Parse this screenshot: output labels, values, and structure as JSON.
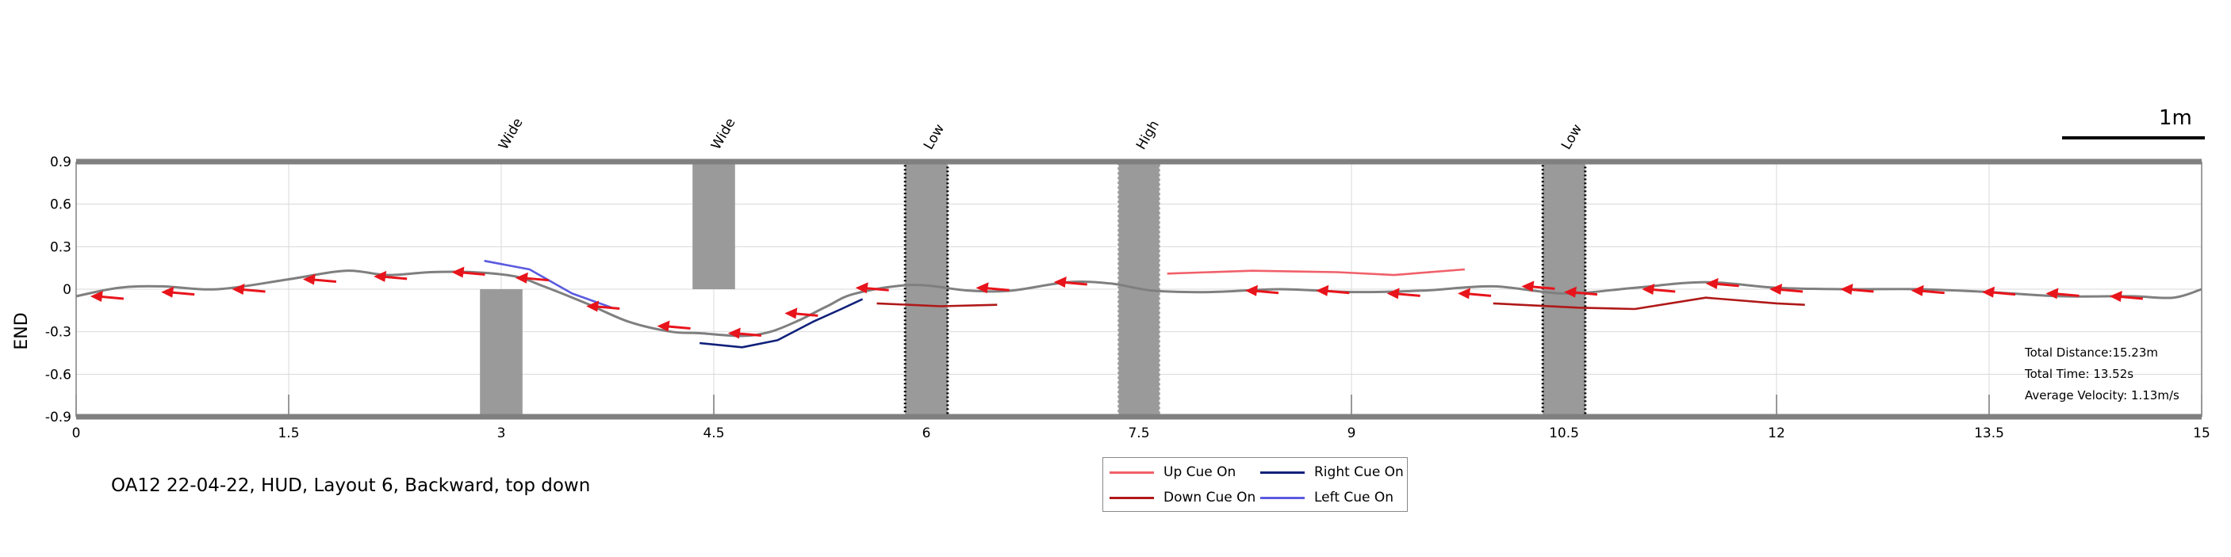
{
  "chart_data": {
    "type": "line",
    "ylabel": "END",
    "xlim": [
      0,
      15
    ],
    "ylim": [
      -0.9,
      0.9
    ],
    "xticks": [
      "0",
      "1.5",
      "3",
      "4.5",
      "6",
      "7.5",
      "9",
      "10.5",
      "12",
      "13.5",
      "15"
    ],
    "yticks": [
      "0.9",
      "0.6",
      "0.3",
      "0",
      "-0.3",
      "-0.6",
      "-0.9"
    ],
    "grid": true,
    "path": [
      [
        0,
        -0.05
      ],
      [
        0.3,
        0.01
      ],
      [
        0.6,
        0.02
      ],
      [
        1.0,
        0.0
      ],
      [
        1.5,
        0.07
      ],
      [
        1.9,
        0.13
      ],
      [
        2.2,
        0.1
      ],
      [
        2.5,
        0.12
      ],
      [
        2.8,
        0.12
      ],
      [
        3.1,
        0.09
      ],
      [
        3.3,
        0.02
      ],
      [
        3.6,
        -0.1
      ],
      [
        3.9,
        -0.23
      ],
      [
        4.2,
        -0.3
      ],
      [
        4.4,
        -0.31
      ],
      [
        4.7,
        -0.33
      ],
      [
        4.9,
        -0.3
      ],
      [
        5.1,
        -0.22
      ],
      [
        5.3,
        -0.12
      ],
      [
        5.5,
        -0.03
      ],
      [
        5.9,
        0.03
      ],
      [
        6.3,
        -0.01
      ],
      [
        6.6,
        -0.01
      ],
      [
        7.0,
        0.05
      ],
      [
        7.3,
        0.04
      ],
      [
        7.6,
        -0.01
      ],
      [
        8.0,
        -0.02
      ],
      [
        8.5,
        0.0
      ],
      [
        9.0,
        -0.02
      ],
      [
        9.5,
        -0.01
      ],
      [
        10.0,
        0.02
      ],
      [
        10.5,
        -0.03
      ],
      [
        11.0,
        0.01
      ],
      [
        11.5,
        0.05
      ],
      [
        12.0,
        0.01
      ],
      [
        12.5,
        0.0
      ],
      [
        13.0,
        0.0
      ],
      [
        13.5,
        -0.02
      ],
      [
        14.0,
        -0.05
      ],
      [
        14.5,
        -0.05
      ],
      [
        14.8,
        -0.06
      ],
      [
        15.0,
        0.0
      ]
    ],
    "arrows": [
      [
        0.1,
        -0.05
      ],
      [
        0.6,
        -0.02
      ],
      [
        1.1,
        0.0
      ],
      [
        1.6,
        0.07
      ],
      [
        2.1,
        0.09
      ],
      [
        2.65,
        0.12
      ],
      [
        3.1,
        0.08
      ],
      [
        3.6,
        -0.12
      ],
      [
        4.1,
        -0.26
      ],
      [
        4.6,
        -0.31
      ],
      [
        5.0,
        -0.17
      ],
      [
        5.5,
        0.01
      ],
      [
        6.35,
        0.01
      ],
      [
        6.9,
        0.05
      ],
      [
        8.25,
        -0.01
      ],
      [
        8.75,
        -0.01
      ],
      [
        9.25,
        -0.03
      ],
      [
        9.75,
        -0.03
      ],
      [
        10.2,
        0.02
      ],
      [
        10.5,
        -0.02
      ],
      [
        11.05,
        0.0
      ],
      [
        11.5,
        0.04
      ],
      [
        11.95,
        0.0
      ],
      [
        12.45,
        0.0
      ],
      [
        12.95,
        -0.01
      ],
      [
        13.45,
        -0.02
      ],
      [
        13.9,
        -0.03
      ],
      [
        14.35,
        -0.05
      ]
    ],
    "arrow_color": "#e8141b",
    "path_color": "#7f7f7f",
    "series": [
      {
        "name": "Up Cue On",
        "color": "#f0606a",
        "segments": [
          [
            [
              7.7,
              0.11
            ],
            [
              8.3,
              0.13
            ],
            [
              8.9,
              0.12
            ],
            [
              9.3,
              0.1
            ],
            [
              9.8,
              0.14
            ]
          ]
        ]
      },
      {
        "name": "Right Cue On",
        "color": "#10207a",
        "segments": [
          [
            [
              4.4,
              -0.38
            ],
            [
              4.7,
              -0.41
            ],
            [
              4.95,
              -0.36
            ],
            [
              5.2,
              -0.23
            ],
            [
              5.4,
              -0.14
            ],
            [
              5.55,
              -0.07
            ]
          ]
        ]
      },
      {
        "name": "Down Cue On",
        "color": "#b01818",
        "segments": [
          [
            [
              5.65,
              -0.1
            ],
            [
              6.1,
              -0.12
            ],
            [
              6.5,
              -0.11
            ]
          ],
          [
            [
              10.0,
              -0.1
            ],
            [
              10.6,
              -0.13
            ],
            [
              11.0,
              -0.14
            ],
            [
              11.5,
              -0.06
            ],
            [
              12.0,
              -0.1
            ],
            [
              12.2,
              -0.11
            ]
          ]
        ]
      },
      {
        "name": "Left Cue On",
        "color": "#5a5ae0",
        "segments": [
          [
            [
              2.88,
              0.2
            ],
            [
              3.2,
              0.14
            ],
            [
              3.5,
              -0.03
            ],
            [
              3.78,
              -0.13
            ]
          ]
        ]
      }
    ],
    "obstacles": [
      {
        "label": "Wide",
        "x": [
          2.85,
          3.15
        ],
        "y": [
          -0.9,
          0
        ],
        "style": "solid"
      },
      {
        "label": "Wide",
        "x": [
          4.35,
          4.65
        ],
        "y": [
          0,
          0.9
        ],
        "style": "solid"
      },
      {
        "label": "Low",
        "x": [
          5.85,
          6.15
        ],
        "y": [
          -0.9,
          0.9
        ],
        "style": "dotted-black"
      },
      {
        "label": "High",
        "x": [
          7.35,
          7.65
        ],
        "y": [
          -0.9,
          0.9
        ],
        "style": "dotted-white"
      },
      {
        "label": "Low",
        "x": [
          10.35,
          10.65
        ],
        "y": [
          -0.9,
          0.9
        ],
        "style": "dotted-black"
      }
    ]
  },
  "caption": "OA12 22-04-22, HUD, Layout 6, Backward, top down",
  "stats": {
    "distance": "Total Distance:15.23m",
    "time": "Total Time: 13.52s",
    "velocity": "Average Velocity: 1.13m/s"
  },
  "scale": {
    "label": "1m"
  },
  "legend": [
    {
      "label": "Up Cue On",
      "color": "#f0606a"
    },
    {
      "label": "Right Cue On",
      "color": "#10207a"
    },
    {
      "label": "Down Cue On",
      "color": "#b01818"
    },
    {
      "label": "Left Cue On",
      "color": "#5a5ae0"
    }
  ]
}
